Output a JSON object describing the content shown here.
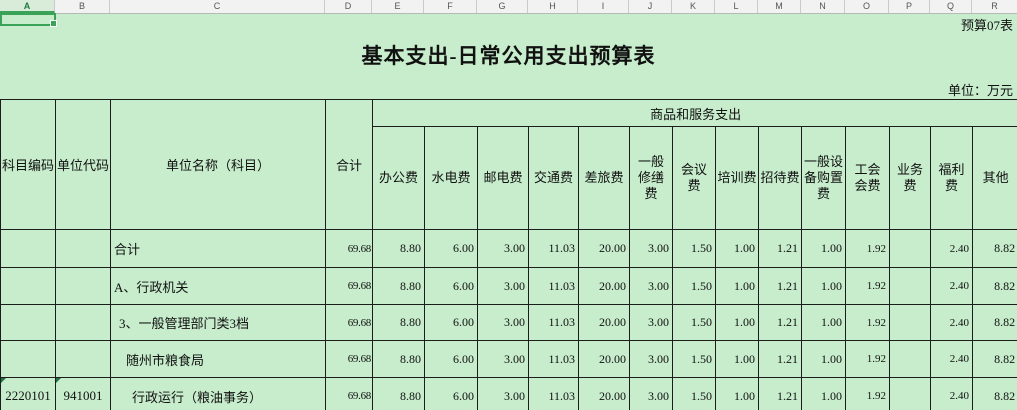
{
  "sheet": {
    "column_letters": [
      "A",
      "B",
      "C",
      "D",
      "E",
      "F",
      "G",
      "H",
      "I",
      "J",
      "K",
      "L",
      "M",
      "N",
      "O",
      "P",
      "Q",
      "R"
    ],
    "selected_cell": "A1",
    "form_label": "预算07表",
    "title": "基本支出-日常公用支出预算表",
    "unit_note": "单位：万元",
    "colors": {
      "sheet_background": "#c7edcc",
      "selection_green": "#3aa357",
      "flag_triangle_green": "#217346",
      "table_border": "#1c1c1c",
      "header_strip": "#f1f2f1"
    }
  },
  "table": {
    "headers": {
      "subject_code": "科目编码",
      "unit_code": "单位代码",
      "unit_name": "单位名称（科目）",
      "total": "合计",
      "group": "商品和服务支出",
      "sub": [
        "办公费",
        "水电费",
        "邮电费",
        "交通费",
        "差旅费",
        "一般\n修缮\n费",
        "会议\n费",
        "培训费",
        "招待费",
        "一般设\n备购置\n费",
        "工会\n会费",
        "业务\n费",
        "福利\n费",
        "其他"
      ]
    },
    "rows": [
      {
        "subject_code": "",
        "unit_code": "",
        "name": "合计",
        "indent": 0,
        "code_flag": false,
        "total": "69.68",
        "values": [
          "8.80",
          "6.00",
          "3.00",
          "11.03",
          "20.00",
          "3.00",
          "1.50",
          "1.00",
          "1.21",
          "1.00",
          "1.92",
          "",
          "2.40",
          "8.82"
        ]
      },
      {
        "subject_code": "",
        "unit_code": "",
        "name": "A、行政机关",
        "indent": 0,
        "code_flag": false,
        "total": "69.68",
        "values": [
          "8.80",
          "6.00",
          "3.00",
          "11.03",
          "20.00",
          "3.00",
          "1.50",
          "1.00",
          "1.21",
          "1.00",
          "1.92",
          "",
          "2.40",
          "8.82"
        ]
      },
      {
        "subject_code": "",
        "unit_code": "",
        "name": "3、一般管理部门类3档",
        "indent": 1,
        "code_flag": false,
        "total": "69.68",
        "values": [
          "8.80",
          "6.00",
          "3.00",
          "11.03",
          "20.00",
          "3.00",
          "1.50",
          "1.00",
          "1.21",
          "1.00",
          "1.92",
          "",
          "2.40",
          "8.82"
        ]
      },
      {
        "subject_code": "",
        "unit_code": "",
        "name": "随州市粮食局",
        "indent": 2,
        "code_flag": false,
        "total": "69.68",
        "values": [
          "8.80",
          "6.00",
          "3.00",
          "11.03",
          "20.00",
          "3.00",
          "1.50",
          "1.00",
          "1.21",
          "1.00",
          "1.92",
          "",
          "2.40",
          "8.82"
        ]
      },
      {
        "subject_code": "2220101",
        "unit_code": "941001",
        "name": "行政运行（粮油事务）",
        "indent": 3,
        "code_flag": true,
        "total": "69.68",
        "values": [
          "8.80",
          "6.00",
          "3.00",
          "11.03",
          "20.00",
          "3.00",
          "1.50",
          "1.00",
          "1.21",
          "1.00",
          "1.92",
          "",
          "2.40",
          "8.82"
        ]
      }
    ]
  }
}
